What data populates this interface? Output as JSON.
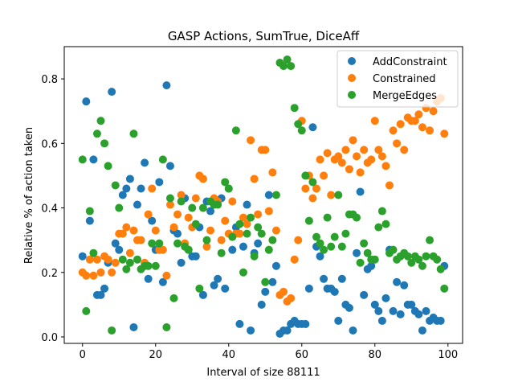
{
  "chart_data": {
    "type": "scatter",
    "title": "GASP Actions, SumTrue, DiceAff",
    "xlabel": "Interval of size 88111",
    "ylabel": "Relative % of action taken",
    "xlim": [
      -5,
      104
    ],
    "ylim": [
      -0.02,
      0.9
    ],
    "xticks": [
      0,
      20,
      40,
      60,
      80,
      100
    ],
    "yticks": [
      0.0,
      0.2,
      0.4,
      0.6,
      0.8
    ],
    "ytick_labels": [
      "0.0",
      "0.2",
      "0.4",
      "0.6",
      "0.8"
    ],
    "grid": false,
    "legend_position": "top-right",
    "x": [
      0,
      1,
      2,
      3,
      4,
      5,
      6,
      7,
      8,
      9,
      10,
      11,
      12,
      13,
      14,
      15,
      16,
      17,
      18,
      19,
      20,
      21,
      22,
      23,
      24,
      25,
      26,
      27,
      28,
      29,
      30,
      31,
      32,
      33,
      34,
      35,
      36,
      37,
      38,
      39,
      40,
      41,
      42,
      43,
      44,
      45,
      46,
      47,
      48,
      49,
      50,
      51,
      52,
      53,
      54,
      55,
      56,
      57,
      58,
      59,
      60,
      61,
      62,
      63,
      64,
      65,
      66,
      67,
      68,
      69,
      70,
      71,
      72,
      73,
      74,
      75,
      76,
      77,
      78,
      79,
      80,
      81,
      82,
      83,
      84,
      85,
      86,
      87,
      88,
      89,
      90,
      91,
      92,
      93,
      94,
      95,
      96,
      97,
      98,
      99
    ],
    "series": [
      {
        "name": "AddConstraint",
        "color": "#1f77b4",
        "values": [
          0.25,
          0.73,
          0.36,
          0.55,
          0.13,
          0.13,
          0.15,
          0.23,
          0.76,
          0.29,
          0.27,
          0.44,
          0.46,
          0.49,
          0.03,
          0.41,
          0.46,
          0.54,
          0.18,
          0.36,
          0.27,
          0.48,
          0.17,
          0.78,
          0.53,
          0.33,
          0.32,
          0.23,
          0.43,
          0.27,
          0.25,
          0.25,
          0.34,
          0.13,
          0.42,
          0.39,
          0.16,
          0.18,
          0.43,
          0.15,
          0.46,
          0.27,
          0.34,
          0.04,
          0.28,
          0.41,
          0.02,
          0.26,
          0.29,
          0.1,
          0.14,
          0.44,
          0.17,
          0.22,
          0.01,
          0.02,
          0.02,
          0.04,
          0.05,
          0.04,
          0.04,
          0.04,
          0.15,
          0.65,
          0.28,
          0.25,
          0.18,
          0.15,
          0.15,
          0.14,
          0.05,
          0.18,
          0.1,
          0.09,
          0.02,
          0.26,
          0.45,
          0.13,
          0.21,
          0.22,
          0.1,
          0.08,
          0.05,
          0.12,
          0.27,
          0.08,
          0.17,
          0.07,
          0.16,
          0.1,
          0.1,
          0.08,
          0.07,
          0.02,
          0.08,
          0.05,
          0.06,
          0.05,
          0.05,
          0.22
        ]
      },
      {
        "name": "Constrained",
        "color": "#ff7f0e",
        "values": [
          0.2,
          0.19,
          0.24,
          0.19,
          0.24,
          0.2,
          0.25,
          0.24,
          0.2,
          0.23,
          0.32,
          0.32,
          0.34,
          0.26,
          0.33,
          0.3,
          0.3,
          0.23,
          0.38,
          0.46,
          0.33,
          0.27,
          0.27,
          0.19,
          0.41,
          0.34,
          0.38,
          0.44,
          0.29,
          0.37,
          0.34,
          0.43,
          0.5,
          0.49,
          0.28,
          0.33,
          0.43,
          0.42,
          0.3,
          0.36,
          0.32,
          0.42,
          0.32,
          0.32,
          0.37,
          0.35,
          0.61,
          0.49,
          0.38,
          0.58,
          0.58,
          0.39,
          0.51,
          0.33,
          0.13,
          0.14,
          0.11,
          0.12,
          0.24,
          0.3,
          0.67,
          0.46,
          0.5,
          0.43,
          0.46,
          0.55,
          0.5,
          0.57,
          0.44,
          0.55,
          0.56,
          0.54,
          0.58,
          0.52,
          0.61,
          0.56,
          0.51,
          0.58,
          0.54,
          0.55,
          0.67,
          0.58,
          0.56,
          0.53,
          0.47,
          0.64,
          0.6,
          0.66,
          0.58,
          0.68,
          0.67,
          0.67,
          0.69,
          0.65,
          0.71,
          0.64,
          0.7,
          0.73,
          0.74,
          0.63
        ]
      },
      {
        "name": "MergeEdges",
        "color": "#2ca02c",
        "values": [
          0.55,
          0.08,
          0.39,
          0.26,
          0.63,
          0.67,
          0.6,
          0.53,
          0.02,
          0.47,
          0.4,
          0.24,
          0.21,
          0.23,
          0.63,
          0.24,
          0.21,
          0.22,
          0.22,
          0.29,
          0.22,
          0.29,
          0.55,
          0.03,
          0.43,
          0.12,
          0.29,
          0.42,
          0.28,
          0.27,
          0.4,
          0.35,
          0.15,
          0.4,
          0.3,
          0.42,
          0.41,
          0.41,
          0.26,
          0.48,
          0.46,
          0.31,
          0.64,
          0.35,
          0.2,
          0.32,
          0.37,
          0.25,
          0.34,
          0.32,
          0.17,
          0.27,
          0.3,
          0.44,
          0.85,
          0.84,
          0.86,
          0.84,
          0.71,
          0.66,
          0.64,
          0.5,
          0.36,
          0.48,
          0.31,
          0.29,
          0.27,
          0.37,
          0.28,
          0.31,
          0.44,
          0.28,
          0.32,
          0.38,
          0.38,
          0.37,
          0.23,
          0.29,
          0.26,
          0.24,
          0.24,
          0.34,
          0.39,
          0.35,
          0.26,
          0.27,
          0.24,
          0.25,
          0.26,
          0.25,
          0.23,
          0.25,
          0.24,
          0.22,
          0.25,
          0.3,
          0.25,
          0.24,
          0.21,
          0.15
        ]
      }
    ]
  }
}
